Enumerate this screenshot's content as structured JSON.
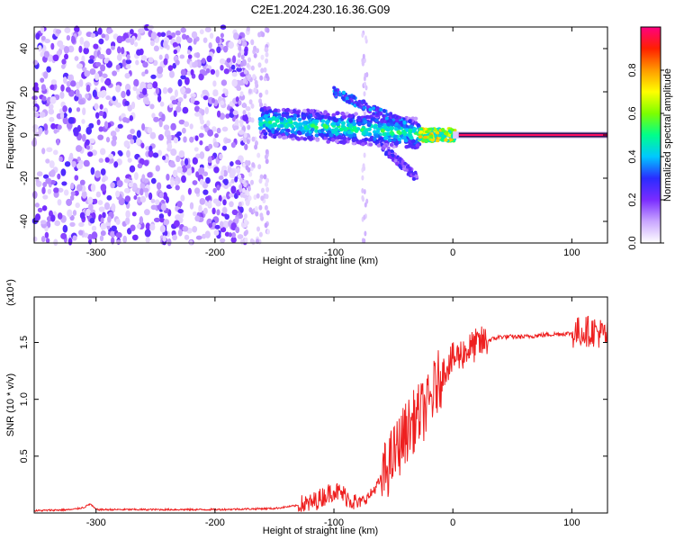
{
  "title": "C2E1.2024.230.16.36.G09",
  "chart_data": [
    {
      "type": "heatmap",
      "xlabel": "Height of straight line (km)",
      "ylabel": "Frequency (Hz)",
      "xlim": [
        -352,
        130
      ],
      "ylim": [
        -50,
        50
      ],
      "x_ticks": [
        -300,
        -200,
        -100,
        0,
        100
      ],
      "y_ticks": [
        -40,
        -20,
        0,
        20,
        40
      ],
      "colorbar": {
        "label": "Normalized spectral amplitude",
        "range": [
          0,
          1
        ],
        "ticks": [
          "0.0",
          "0.2",
          "0.4",
          "0.6",
          "0.8"
        ],
        "colors": [
          "#ffffff",
          "#c9a6ff",
          "#7a2cff",
          "#2a2cff",
          "#00c8ff",
          "#00ff8a",
          "#7dff00",
          "#ffff00",
          "#ff9a00",
          "#ff2000",
          "#ff0080"
        ]
      },
      "regions": [
        {
          "x_range": [
            -352,
            -175
          ],
          "freq_range": [
            -50,
            50
          ],
          "amplitude": "0.0-0.25 (noise)"
        },
        {
          "x_range": [
            -160,
            -30
          ],
          "freq_center": [
            5,
            3,
            1
          ],
          "amplitude": "0.1-0.5"
        },
        {
          "x_range": [
            -25,
            0
          ],
          "freq_center": [
            0,
            0
          ],
          "amplitude": "0.4-0.8"
        },
        {
          "x_range": [
            0,
            130
          ],
          "freq_center": [
            0,
            0
          ],
          "amplitude": "0.9-1.0"
        }
      ]
    },
    {
      "type": "line",
      "xlabel": "Height of straight line (km)",
      "ylabel": "SNR (10 * v/v)",
      "y_multiplier": "(x10⁴)",
      "xlim": [
        -352,
        130
      ],
      "ylim": [
        0,
        1.9
      ],
      "x_ticks": [
        -300,
        -200,
        -100,
        0,
        100
      ],
      "y_ticks": [
        "0.5",
        "1.0",
        "1.5"
      ],
      "series": [
        {
          "color": "#ee2020",
          "x": [
            -352,
            -320,
            -310,
            -305,
            -300,
            -250,
            -200,
            -150,
            -120,
            -100,
            -90,
            -80,
            -70,
            -60,
            -50,
            -40,
            -30,
            -20,
            -15,
            -10,
            -5,
            0,
            10,
            20,
            30,
            40,
            60,
            80,
            100,
            110,
            120,
            130
          ],
          "y": [
            0.02,
            0.03,
            0.05,
            0.08,
            0.03,
            0.03,
            0.03,
            0.04,
            0.08,
            0.2,
            0.15,
            0.08,
            0.15,
            0.3,
            0.5,
            0.7,
            0.85,
            0.95,
            1.1,
            1.2,
            1.3,
            1.35,
            1.42,
            1.48,
            1.52,
            1.55,
            1.55,
            1.57,
            1.58,
            1.6,
            1.6,
            1.55
          ]
        }
      ]
    }
  ]
}
